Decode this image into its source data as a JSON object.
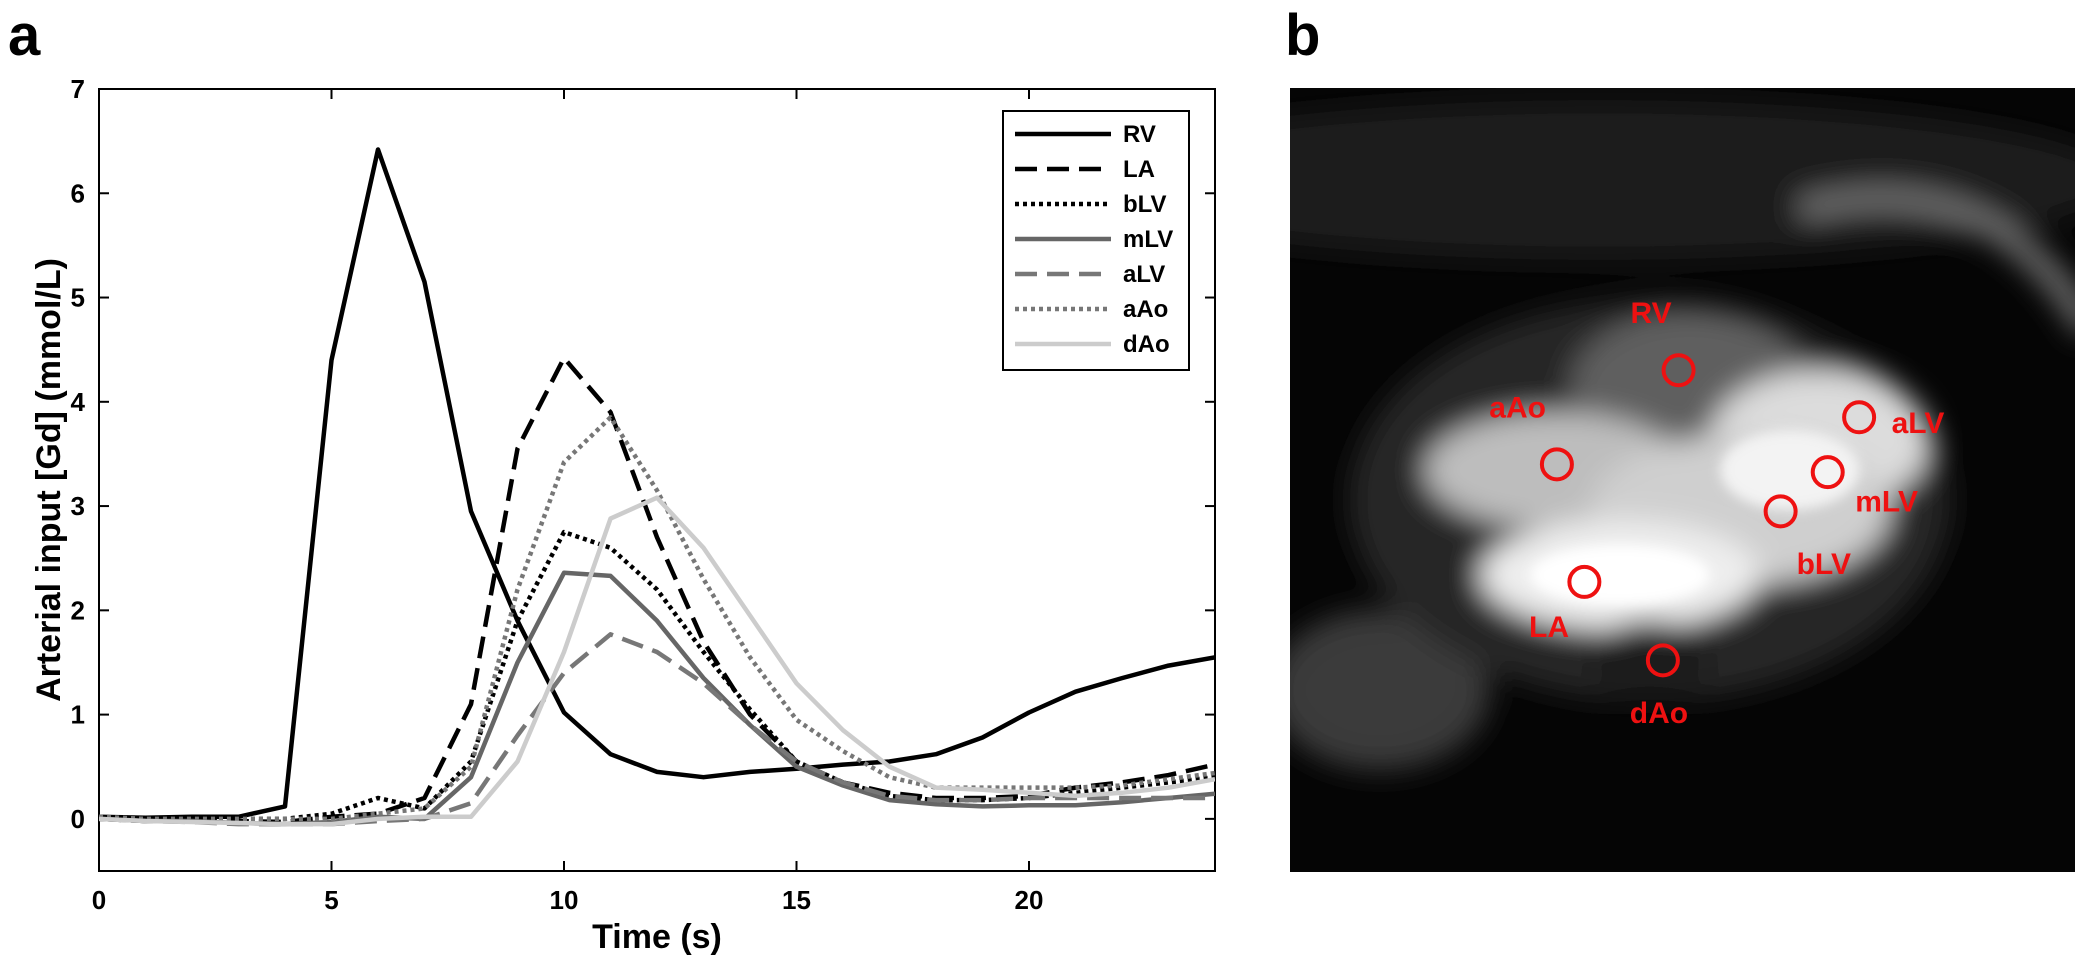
{
  "panels": {
    "a_label": "a",
    "b_label": "b"
  },
  "chart_data": {
    "type": "line",
    "xlabel": "Time (s)",
    "ylabel": "Arterial input [Gd] (mmol/L)",
    "xlim": [
      0,
      24
    ],
    "ylim": [
      -0.5,
      7
    ],
    "xticks": [
      0,
      5,
      10,
      15,
      20
    ],
    "yticks": [
      0,
      1,
      2,
      3,
      4,
      5,
      6,
      7
    ],
    "grid": false,
    "legend_position": "top-right",
    "x": [
      0,
      1,
      2,
      3,
      4,
      5,
      6,
      7,
      8,
      9,
      10,
      11,
      12,
      13,
      14,
      15,
      16,
      17,
      18,
      19,
      20,
      21,
      22,
      23,
      24
    ],
    "series": [
      {
        "name": "RV",
        "color": "#000000",
        "dash": "solid",
        "values": [
          0.02,
          0.01,
          0.02,
          0.02,
          0.12,
          4.4,
          6.42,
          5.15,
          2.95,
          1.9,
          1.02,
          0.62,
          0.45,
          0.4,
          0.45,
          0.48,
          0.52,
          0.55,
          0.62,
          0.78,
          1.02,
          1.22,
          1.35,
          1.47,
          1.55
        ]
      },
      {
        "name": "LA",
        "color": "#000000",
        "dash": "dashed",
        "values": [
          0.0,
          -0.02,
          0.0,
          -0.02,
          -0.03,
          0.02,
          0.05,
          0.2,
          1.1,
          3.55,
          4.42,
          3.9,
          2.7,
          1.7,
          1.0,
          0.55,
          0.35,
          0.25,
          0.2,
          0.2,
          0.22,
          0.3,
          0.35,
          0.42,
          0.52
        ]
      },
      {
        "name": "bLV",
        "color": "#000000",
        "dash": "dotted",
        "values": [
          0.02,
          0.0,
          -0.01,
          0.0,
          0.0,
          0.05,
          0.2,
          0.1,
          0.55,
          1.9,
          2.75,
          2.6,
          2.2,
          1.6,
          1.05,
          0.55,
          0.35,
          0.22,
          0.18,
          0.18,
          0.2,
          0.25,
          0.3,
          0.35,
          0.4
        ]
      },
      {
        "name": "mLV",
        "color": "#666666",
        "dash": "solid",
        "values": [
          0.0,
          -0.02,
          -0.02,
          -0.04,
          -0.05,
          -0.03,
          0.02,
          0.0,
          0.4,
          1.5,
          2.36,
          2.33,
          1.9,
          1.35,
          0.9,
          0.5,
          0.32,
          0.18,
          0.14,
          0.12,
          0.13,
          0.13,
          0.16,
          0.2,
          0.24
        ]
      },
      {
        "name": "aLV",
        "color": "#777777",
        "dash": "dashed",
        "values": [
          0.0,
          -0.02,
          -0.03,
          -0.05,
          -0.05,
          -0.05,
          -0.02,
          0.0,
          0.15,
          0.8,
          1.4,
          1.77,
          1.6,
          1.3,
          0.9,
          0.55,
          0.35,
          0.22,
          0.18,
          0.18,
          0.2,
          0.2,
          0.2,
          0.2,
          0.2
        ]
      },
      {
        "name": "aAo",
        "color": "#777777",
        "dash": "dotted",
        "values": [
          0.02,
          0.0,
          0.0,
          0.0,
          0.0,
          0.0,
          0.05,
          0.1,
          0.5,
          2.2,
          3.42,
          3.85,
          3.15,
          2.3,
          1.55,
          0.95,
          0.65,
          0.4,
          0.3,
          0.3,
          0.3,
          0.3,
          0.32,
          0.38,
          0.44
        ]
      },
      {
        "name": "dAo",
        "color": "#cccccc",
        "dash": "solid",
        "values": [
          0.0,
          -0.02,
          -0.03,
          -0.04,
          -0.05,
          -0.05,
          0.0,
          0.02,
          0.02,
          0.55,
          1.6,
          2.88,
          3.08,
          2.6,
          1.95,
          1.3,
          0.85,
          0.5,
          0.3,
          0.28,
          0.25,
          0.22,
          0.25,
          0.3,
          0.38
        ]
      }
    ]
  },
  "image_panel": {
    "description_visible": false,
    "rois": [
      {
        "name": "RV",
        "label": "RV",
        "circle_x": 0.495,
        "circle_y": 0.36,
        "label_x": 0.46,
        "label_y": 0.3
      },
      {
        "name": "aAo",
        "label": "aAo",
        "circle_x": 0.34,
        "circle_y": 0.48,
        "label_x": 0.29,
        "label_y": 0.42
      },
      {
        "name": "aLV",
        "label": "aLV",
        "circle_x": 0.725,
        "circle_y": 0.42,
        "label_x": 0.8,
        "label_y": 0.44
      },
      {
        "name": "mLV",
        "label": "mLV",
        "circle_x": 0.685,
        "circle_y": 0.49,
        "label_x": 0.76,
        "label_y": 0.54
      },
      {
        "name": "bLV",
        "label": "bLV",
        "circle_x": 0.625,
        "circle_y": 0.54,
        "label_x": 0.68,
        "label_y": 0.62
      },
      {
        "name": "LA",
        "label": "LA",
        "circle_x": 0.375,
        "circle_y": 0.63,
        "label_x": 0.33,
        "label_y": 0.7
      },
      {
        "name": "dAo",
        "label": "dAo",
        "circle_x": 0.475,
        "circle_y": 0.73,
        "label_x": 0.47,
        "label_y": 0.81
      }
    ]
  }
}
